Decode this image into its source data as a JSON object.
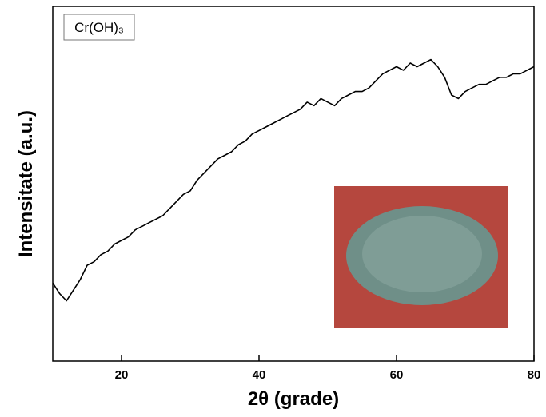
{
  "chart_data": {
    "type": "line",
    "annotation": "Cr(OH)₃",
    "x_label": "2θ (grade)",
    "y_label": "Intensitate (a.u.)",
    "xlim": [
      10,
      80
    ],
    "xticks": [
      20,
      40,
      60,
      80
    ],
    "ylim": [
      0,
      100
    ],
    "x": [
      10,
      11,
      12,
      13,
      14,
      15,
      16,
      17,
      18,
      19,
      20,
      21,
      22,
      23,
      24,
      25,
      26,
      27,
      28,
      29,
      30,
      31,
      32,
      33,
      34,
      35,
      36,
      37,
      38,
      39,
      40,
      41,
      42,
      43,
      44,
      45,
      46,
      47,
      48,
      49,
      50,
      51,
      52,
      53,
      54,
      55,
      56,
      57,
      58,
      59,
      60,
      61,
      62,
      63,
      64,
      65,
      66,
      67,
      68,
      69,
      70,
      71,
      72,
      73,
      74,
      75,
      76,
      77,
      78,
      79,
      80
    ],
    "series": [
      {
        "color": "#000000",
        "values": [
          22,
          19,
          17,
          20,
          23,
          27,
          28,
          30,
          31,
          33,
          34,
          35,
          37,
          38,
          39,
          40,
          41,
          43,
          45,
          47,
          48,
          51,
          53,
          55,
          57,
          58,
          59,
          61,
          62,
          64,
          65,
          66,
          67,
          68,
          69,
          70,
          71,
          73,
          72,
          74,
          73,
          72,
          74,
          75,
          76,
          76,
          77,
          79,
          81,
          82,
          83,
          82,
          84,
          83,
          84,
          85,
          83,
          80,
          75,
          74,
          76,
          77,
          78,
          78,
          79,
          80,
          80,
          81,
          81,
          82,
          83
        ]
      }
    ]
  }
}
